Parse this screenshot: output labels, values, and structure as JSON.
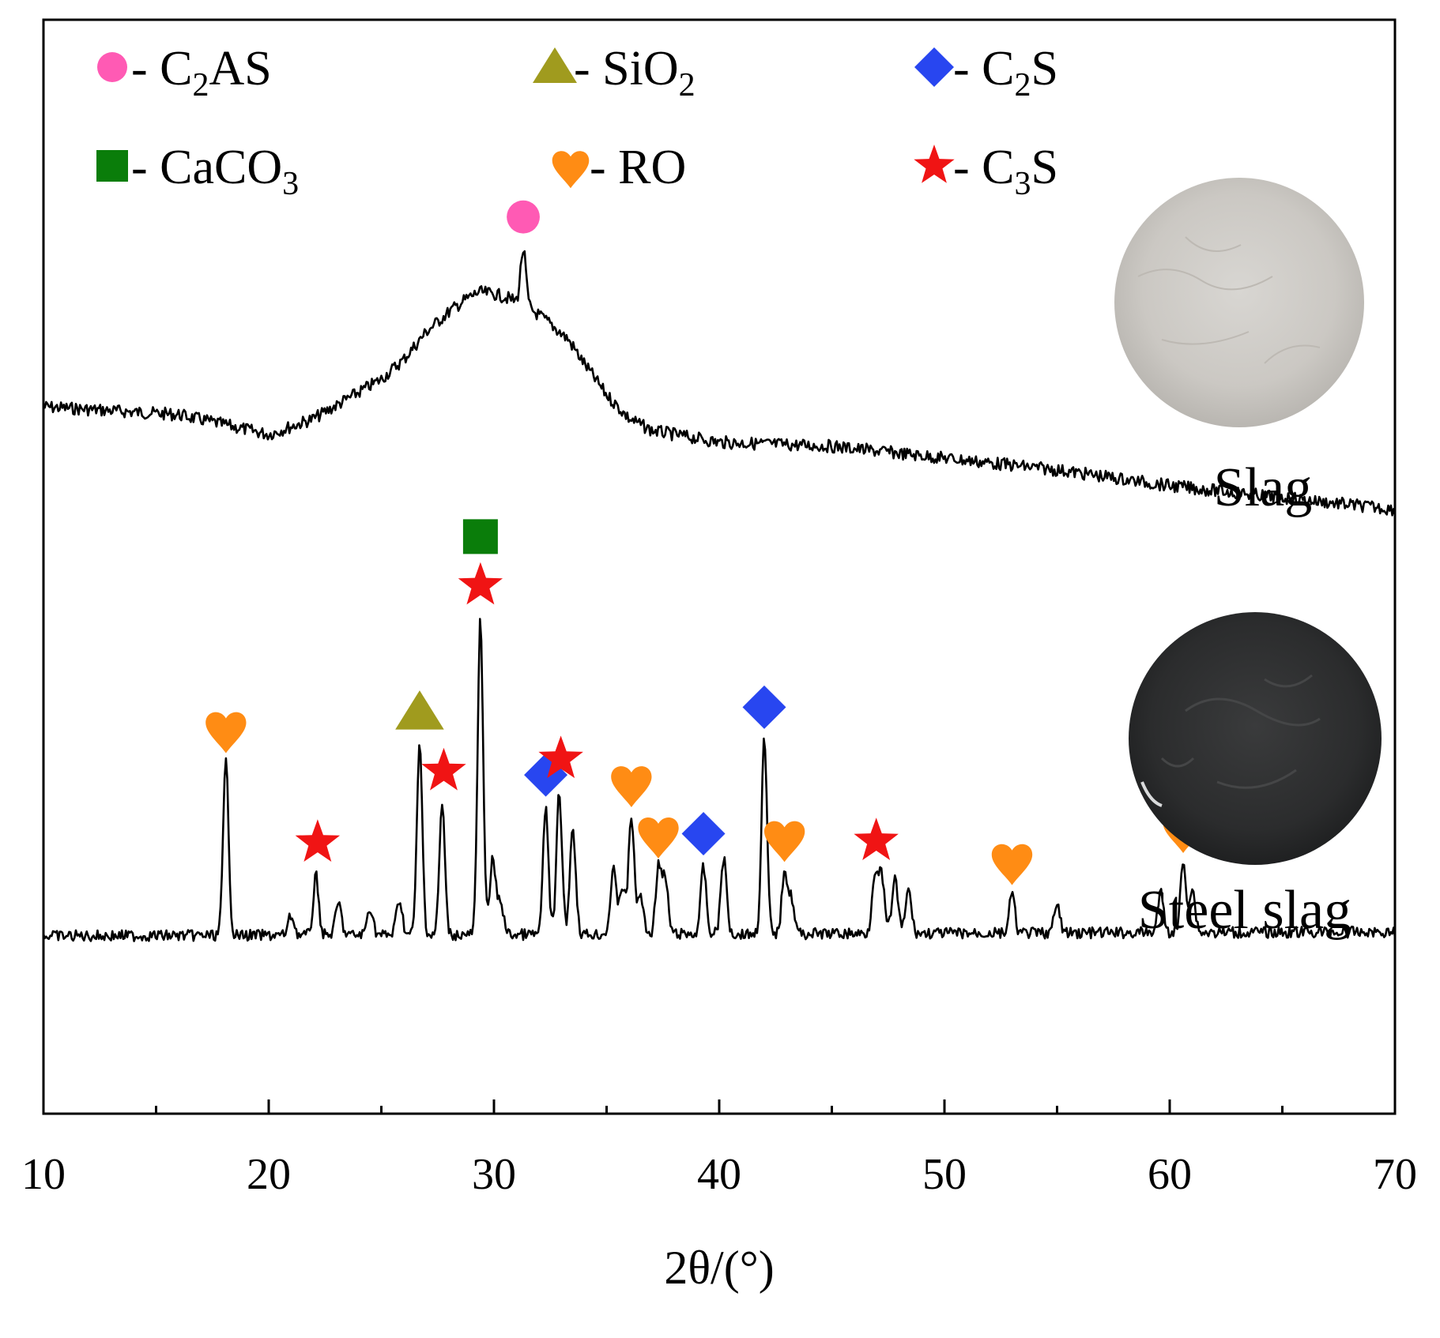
{
  "chart_data": {
    "type": "line",
    "xlabel": "2θ/(°)",
    "ylabel": "",
    "xlim": [
      10,
      70
    ],
    "x_ticks": [
      "10",
      "20",
      "30",
      "40",
      "50",
      "60",
      "70"
    ],
    "grid": false,
    "legend_placement": "top-left",
    "legend": [
      {
        "key": "C2AS",
        "prefix": "- C",
        "sub": "2",
        "suffix": "AS",
        "marker": "circle",
        "color": "#ff5ab4"
      },
      {
        "key": "SiO2",
        "prefix": "- SiO",
        "sub": "2",
        "suffix": "",
        "marker": "triangle",
        "color": "#a09b1e"
      },
      {
        "key": "C2S",
        "prefix": "- C",
        "sub": "2",
        "suffix": "S",
        "marker": "diamond",
        "color": "#2846f0"
      },
      {
        "key": "CaCO3",
        "prefix": "- CaCO",
        "sub": "3",
        "suffix": "",
        "marker": "square",
        "color": "#0a7d0a"
      },
      {
        "key": "RO",
        "prefix": "- RO",
        "sub": "",
        "suffix": "",
        "marker": "heart",
        "color": "#ff8c14"
      },
      {
        "key": "C3S",
        "prefix": "- C",
        "sub": "3",
        "suffix": "S",
        "marker": "star",
        "color": "#f01414"
      }
    ],
    "series": [
      {
        "name": "Slag",
        "image": "gray-powder-photo",
        "baseline": [
          [
            10,
            515
          ],
          [
            16,
            525
          ],
          [
            20,
            550
          ],
          [
            22,
            530
          ],
          [
            25,
            480
          ],
          [
            26,
            455
          ],
          [
            27,
            420
          ],
          [
            28,
            395
          ],
          [
            28.7,
            380
          ],
          [
            29.3,
            370
          ],
          [
            30,
            372
          ],
          [
            30.7,
            378
          ],
          [
            31.2,
            385
          ],
          [
            31.8,
            395
          ],
          [
            32.5,
            410
          ],
          [
            33.3,
            430
          ],
          [
            34,
            460
          ],
          [
            35,
            500
          ],
          [
            36,
            530
          ],
          [
            37,
            545
          ],
          [
            40,
            560
          ],
          [
            45,
            565
          ],
          [
            50,
            580
          ],
          [
            55,
            595
          ],
          [
            60,
            615
          ],
          [
            65,
            630
          ],
          [
            70,
            645
          ]
        ],
        "peaks": [
          {
            "x": 31.3,
            "height": 70,
            "phase": "C2AS"
          }
        ]
      },
      {
        "name": "Steel slag",
        "image": "dark-powder-photo",
        "baseline": [
          [
            10,
            1185
          ],
          [
            70,
            1180
          ]
        ],
        "peaks": [
          {
            "x": 18.1,
            "height": 220,
            "phase": "RO"
          },
          {
            "x": 22.1,
            "height": 75,
            "phase": "C3S"
          },
          {
            "x": 26.7,
            "height": 240,
            "phase": "SiO2"
          },
          {
            "x": 27.7,
            "height": 165,
            "phase": "C3S"
          },
          {
            "x": 29.4,
            "height": 400,
            "phase": "C3S,CaCO3"
          },
          {
            "x": 32.3,
            "height": 160,
            "phase": "C2S"
          },
          {
            "x": 32.9,
            "height": 180,
            "phase": "C3S"
          },
          {
            "x": 36.1,
            "height": 150,
            "phase": "RO"
          },
          {
            "x": 37.3,
            "height": 85,
            "phase": "RO"
          },
          {
            "x": 39.3,
            "height": 85,
            "phase": "C2S"
          },
          {
            "x": 42.0,
            "height": 245,
            "phase": "C2S"
          },
          {
            "x": 42.9,
            "height": 80,
            "phase": "RO"
          },
          {
            "x": 46.9,
            "height": 75,
            "phase": "C3S"
          },
          {
            "x": 53.0,
            "height": 50,
            "phase": "RO"
          },
          {
            "x": 60.6,
            "height": 90,
            "phase": "RO"
          }
        ]
      }
    ]
  }
}
